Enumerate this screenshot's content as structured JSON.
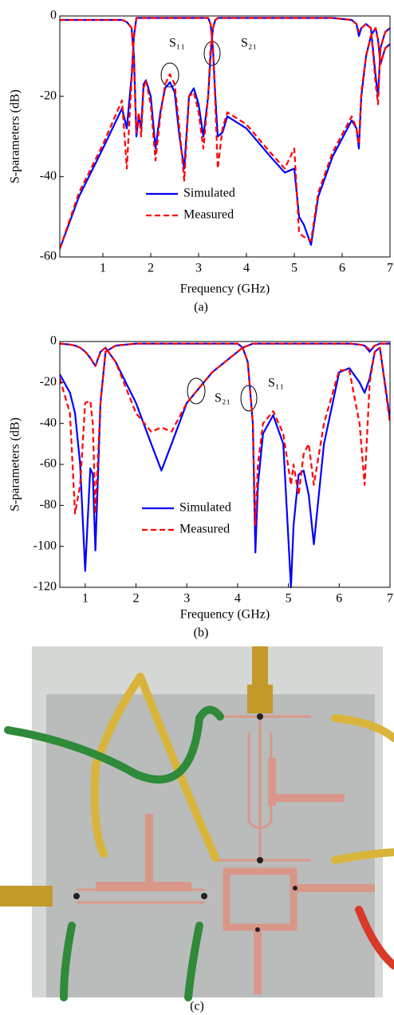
{
  "chart_data": [
    {
      "type": "line",
      "ylabel": "S-parameters (dB)",
      "xlabel": "Frequency (GHz)",
      "caption": "(a)",
      "annotations": [
        "S₁₁",
        "S₂₁"
      ],
      "xlim": [
        0.1,
        7
      ],
      "xticks": [
        1,
        2,
        3,
        4,
        5,
        6,
        7
      ],
      "ylim": [
        -60,
        0
      ],
      "yticks": [
        -60,
        -40,
        -20,
        0
      ],
      "x": [
        0.1,
        0.5,
        1,
        1.4,
        1.5,
        1.6,
        1.65,
        1.7,
        1.75,
        1.8,
        1.85,
        1.9,
        2.0,
        2.1,
        2.2,
        2.3,
        2.4,
        2.5,
        2.6,
        2.7,
        2.8,
        2.9,
        3.0,
        3.1,
        3.2,
        3.25,
        3.3,
        3.35,
        3.4,
        3.5,
        3.6,
        4.0,
        4.5,
        4.8,
        5.0,
        5.1,
        5.2,
        5.35,
        5.5,
        5.8,
        6.2,
        6.3,
        6.35,
        6.4,
        6.5,
        6.6,
        6.7,
        6.75,
        6.8,
        6.9,
        7.0
      ],
      "series": [
        {
          "name": "Simulated",
          "color": "#0000ff",
          "dashed": false,
          "curves": [
            [
              -1,
              -1,
              -1,
              -1,
              -1.5,
              -3,
              -10,
              -30,
              -25,
              -28,
              -17,
              -16,
              -20,
              -33,
              -24,
              -18,
              -16.5,
              -19,
              -30,
              -38,
              -20,
              -18,
              -22,
              -30,
              -20,
              -10,
              -3,
              -1,
              -0.5,
              -0.5,
              -0.5,
              -0.5,
              -0.5,
              -0.5,
              -0.5,
              -0.5,
              -0.5,
              -0.5,
              -0.5,
              -0.5,
              -1,
              -2,
              -5,
              -3,
              -2,
              -3,
              -15,
              -20,
              -8,
              -4,
              -3
            ],
            [
              -58,
              -45,
              -33,
              -23,
              -28,
              -15,
              -5,
              -0.5,
              -0.5,
              -0.5,
              -0.5,
              -0.5,
              -0.5,
              -0.5,
              -0.5,
              -0.5,
              -0.5,
              -0.5,
              -0.5,
              -0.5,
              -0.5,
              -0.5,
              -0.5,
              -0.5,
              -0.5,
              -2,
              -8,
              -20,
              -30,
              -29,
              -25,
              -28,
              -35,
              -39,
              -38,
              -50,
              -52,
              -57,
              -45,
              -35,
              -26,
              -28,
              -33,
              -20,
              -10,
              -5,
              -3,
              -6,
              -12,
              -8,
              -7
            ]
          ]
        },
        {
          "name": "Measured",
          "color": "#ff0000",
          "dashed": true,
          "curves": [
            [
              -1,
              -1,
              -1,
              -1,
              -1.5,
              -3,
              -12,
              -29,
              -24,
              -30,
              -18,
              -16,
              -22,
              -36,
              -25,
              -17,
              -14.5,
              -17,
              -28,
              -41,
              -20,
              -19,
              -24,
              -33,
              -20,
              -8,
              -3,
              -1,
              -0.5,
              -0.5,
              -0.5,
              -0.5,
              -0.5,
              -0.5,
              -0.5,
              -0.5,
              -0.5,
              -0.5,
              -0.5,
              -0.5,
              -1,
              -2,
              -4,
              -3,
              -2,
              -3,
              -17,
              -22,
              -8,
              -4,
              -3
            ],
            [
              -58,
              -44,
              -32,
              -21,
              -38,
              -16,
              -5,
              -0.5,
              -0.5,
              -0.5,
              -0.5,
              -0.5,
              -0.5,
              -0.5,
              -0.5,
              -0.5,
              -0.5,
              -0.5,
              -0.5,
              -0.5,
              -0.5,
              -0.5,
              -0.5,
              -0.5,
              -0.5,
              -2,
              -8,
              -22,
              -38,
              -28,
              -24,
              -27,
              -34,
              -38,
              -33,
              -54,
              -55,
              -56,
              -44,
              -34,
              -25,
              -28,
              -32,
              -19,
              -10,
              -5,
              -3,
              -6,
              -12,
              -8,
              -7
            ]
          ]
        }
      ]
    },
    {
      "type": "line",
      "ylabel": "S-parameters (dB)",
      "xlabel": "Frequency (GHz)",
      "caption": "(b)",
      "annotations": [
        "S₂₁",
        "S₁₁"
      ],
      "xlim": [
        0.5,
        7
      ],
      "xticks": [
        1,
        2,
        3,
        4,
        5,
        6,
        7
      ],
      "ylim": [
        -120,
        0
      ],
      "yticks": [
        -120,
        -100,
        -80,
        -60,
        -40,
        -20,
        0
      ],
      "x": [
        0.5,
        0.7,
        0.8,
        0.9,
        1.0,
        1.1,
        1.15,
        1.2,
        1.3,
        1.4,
        1.6,
        2.0,
        2.3,
        2.5,
        2.7,
        3.0,
        3.5,
        4.0,
        4.1,
        4.2,
        4.3,
        4.35,
        4.4,
        4.5,
        4.7,
        4.9,
        5.05,
        5.1,
        5.2,
        5.3,
        5.4,
        5.5,
        5.7,
        6.0,
        6.2,
        6.4,
        6.5,
        6.6,
        6.7,
        6.8,
        7.0
      ],
      "series": [
        {
          "name": "Simulated",
          "color": "#0000ff",
          "dashed": false,
          "curves": [
            [
              -16,
              -25,
              -35,
              -60,
              -112,
              -62,
              -65,
              -102,
              -30,
              -5,
              -2,
              -1,
              -1,
              -1,
              -1,
              -1,
              -1,
              -1,
              -3,
              -10,
              -40,
              -103,
              -70,
              -45,
              -36,
              -50,
              -120,
              -90,
              -65,
              -63,
              -75,
              -99,
              -50,
              -15,
              -13,
              -20,
              -25,
              -18,
              -5,
              -3,
              -38
            ],
            [
              -1,
              -1.5,
              -2,
              -3,
              -5,
              -8,
              -10,
              -12,
              -5,
              -3,
              -10,
              -30,
              -50,
              -63,
              -50,
              -30,
              -15,
              -5,
              -3,
              -2,
              -1,
              -1,
              -1,
              -1,
              -1,
              -1,
              -1,
              -1,
              -1,
              -1,
              -1,
              -1,
              -1,
              -1,
              -1,
              -1.5,
              -2,
              -5,
              -2,
              -1,
              -1
            ]
          ]
        },
        {
          "name": "Measured",
          "color": "#ff0000",
          "dashed": true,
          "curves": [
            [
              -18,
              -35,
              -84,
              -70,
              -30,
              -29,
              -40,
              -84,
              -30,
              -5,
              -2,
              -1,
              -1,
              -1,
              -1,
              -1,
              -1,
              -1,
              -3,
              -10,
              -40,
              -90,
              -60,
              -40,
              -34,
              -45,
              -70,
              -60,
              -75,
              -55,
              -50,
              -70,
              -40,
              -14,
              -14,
              -40,
              -70,
              -20,
              -5,
              -3,
              -40
            ],
            [
              -1,
              -1.5,
              -2,
              -3,
              -5,
              -8,
              -10,
              -12,
              -5,
              -3,
              -10,
              -35,
              -44,
              -42,
              -44,
              -30,
              -15,
              -5,
              -3,
              -2,
              -1,
              -1,
              -1,
              -1,
              -1,
              -1,
              -1,
              -1,
              -1,
              -1,
              -1,
              -1,
              -1,
              -1,
              -1,
              -1.5,
              -2,
              -4,
              -2,
              -1,
              -1
            ]
          ]
        }
      ]
    }
  ],
  "photo": {
    "caption": "(c)"
  }
}
